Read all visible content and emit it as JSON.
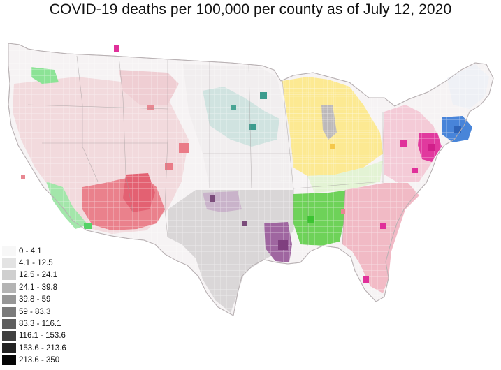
{
  "title": "COVID-19 deaths per 100,000 per county as of July 12, 2020",
  "legend": {
    "items": [
      {
        "label": "0 - 4.1",
        "color": "#f7f7f7"
      },
      {
        "label": "4.1 - 12.5",
        "color": "#e3e3e3"
      },
      {
        "label": "12.5 - 24.1",
        "color": "#cfcfcf"
      },
      {
        "label": "24.1 - 39.8",
        "color": "#b4b4b4"
      },
      {
        "label": "39.8 - 59",
        "color": "#979797"
      },
      {
        "label": "59 - 83.3",
        "color": "#7b7b7b"
      },
      {
        "label": "83.3 - 116.1",
        "color": "#5e5e5e"
      },
      {
        "label": "116.1 - 153.6",
        "color": "#404040"
      },
      {
        "label": "153.6 - 213.6",
        "color": "#232323"
      },
      {
        "label": "213.6 - 350",
        "color": "#050505"
      }
    ]
  },
  "region_colors": {
    "base": "#f5f2f3",
    "west": "#f3d3d6",
    "west_dark": "#e9707d",
    "green": "#7ee38a",
    "teal": "#3c9c8e",
    "yellow": "#fbe36a",
    "light_green": "#dff2c8",
    "green_south": "#5fd049",
    "purple": "#8b4f8c",
    "gray_south": "#bfbfbf",
    "pink_south": "#f0a7b8",
    "magenta": "#e0309a",
    "blue": "#3a78d8",
    "border": "#2f2f2f"
  }
}
